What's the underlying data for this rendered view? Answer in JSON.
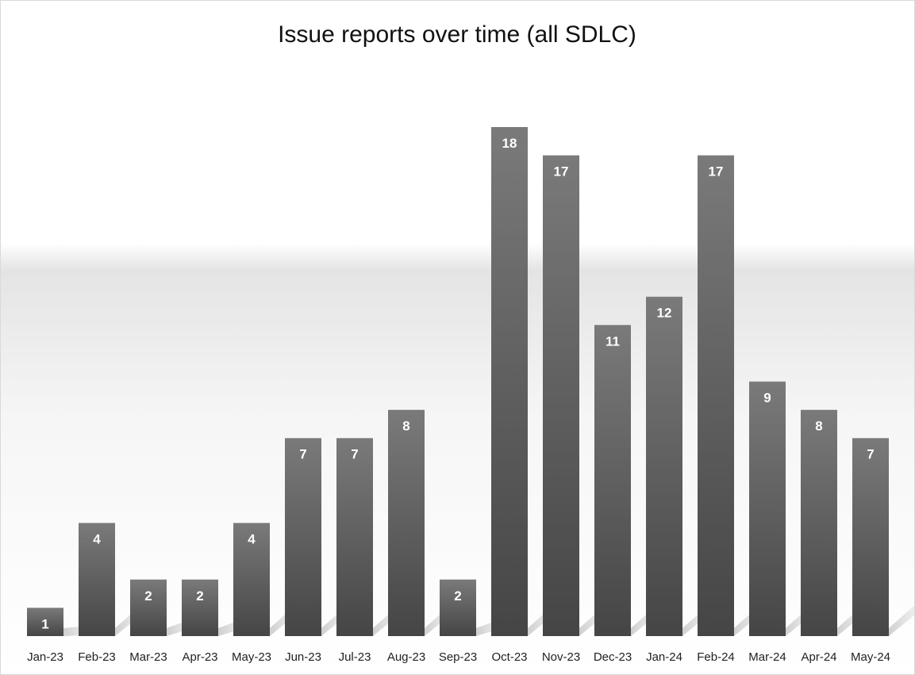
{
  "chart_data": {
    "type": "bar",
    "title": "Issue reports over time (all SDLC)",
    "xlabel": "",
    "ylabel": "",
    "categories": [
      "Jan-23",
      "Feb-23",
      "Mar-23",
      "Apr-23",
      "May-23",
      "Jun-23",
      "Jul-23",
      "Aug-23",
      "Sep-23",
      "Oct-23",
      "Nov-23",
      "Dec-23",
      "Jan-24",
      "Feb-24",
      "Mar-24",
      "Apr-24",
      "May-24"
    ],
    "values": [
      1,
      4,
      2,
      2,
      4,
      7,
      7,
      8,
      2,
      18,
      17,
      11,
      12,
      17,
      9,
      8,
      7
    ],
    "ylim": [
      0,
      18
    ],
    "grid": false,
    "data_labels": true,
    "legend": "none",
    "colors": {
      "bar_top": "#7a7a7a",
      "bar_bottom": "#454545",
      "label": "#ffffff",
      "border": "#d9d9d9"
    }
  }
}
